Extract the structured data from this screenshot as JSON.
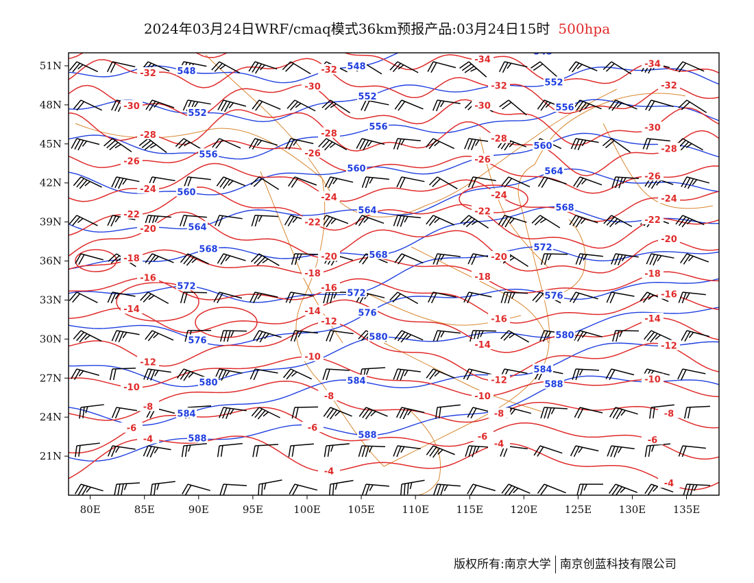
{
  "title": {
    "main": "2024年03月24日WRF/cmaq模式36km预报产品:03月24日15时",
    "level": "500hpa"
  },
  "colors": {
    "height_contour": "#1f3fe0",
    "temperature_contour": "#e02a2a",
    "boundary": "#d9862e",
    "wind_barb": "#000000",
    "frame": "#000000"
  },
  "axes": {
    "lat_labels": [
      "51N",
      "48N",
      "45N",
      "42N",
      "39N",
      "36N",
      "33N",
      "30N",
      "27N",
      "24N",
      "21N"
    ],
    "lat_values": [
      51,
      48,
      45,
      42,
      39,
      36,
      33,
      30,
      27,
      24,
      21
    ],
    "lon_labels": [
      "80E",
      "85E",
      "90E",
      "95E",
      "100E",
      "105E",
      "110E",
      "115E",
      "120E",
      "125E",
      "130E",
      "135E"
    ],
    "lon_values": [
      80,
      85,
      90,
      95,
      100,
      105,
      110,
      115,
      120,
      125,
      130,
      135
    ],
    "lon_range": [
      78,
      138
    ],
    "lat_range": [
      18,
      52
    ]
  },
  "height_labels": [
    "548",
    "552",
    "556",
    "560",
    "564",
    "568",
    "572",
    "576",
    "580",
    "584",
    "588"
  ],
  "temperature_labels": [
    "-34",
    "-32",
    "-30",
    "-28",
    "-26",
    "-24",
    "-22",
    "-20",
    "-18",
    "-16",
    "-14",
    "-12",
    "-10",
    "-8",
    "-6",
    "-4"
  ],
  "footer": {
    "left": "版权所有:南京大学",
    "right": "南京创蓝科技有限公司"
  }
}
